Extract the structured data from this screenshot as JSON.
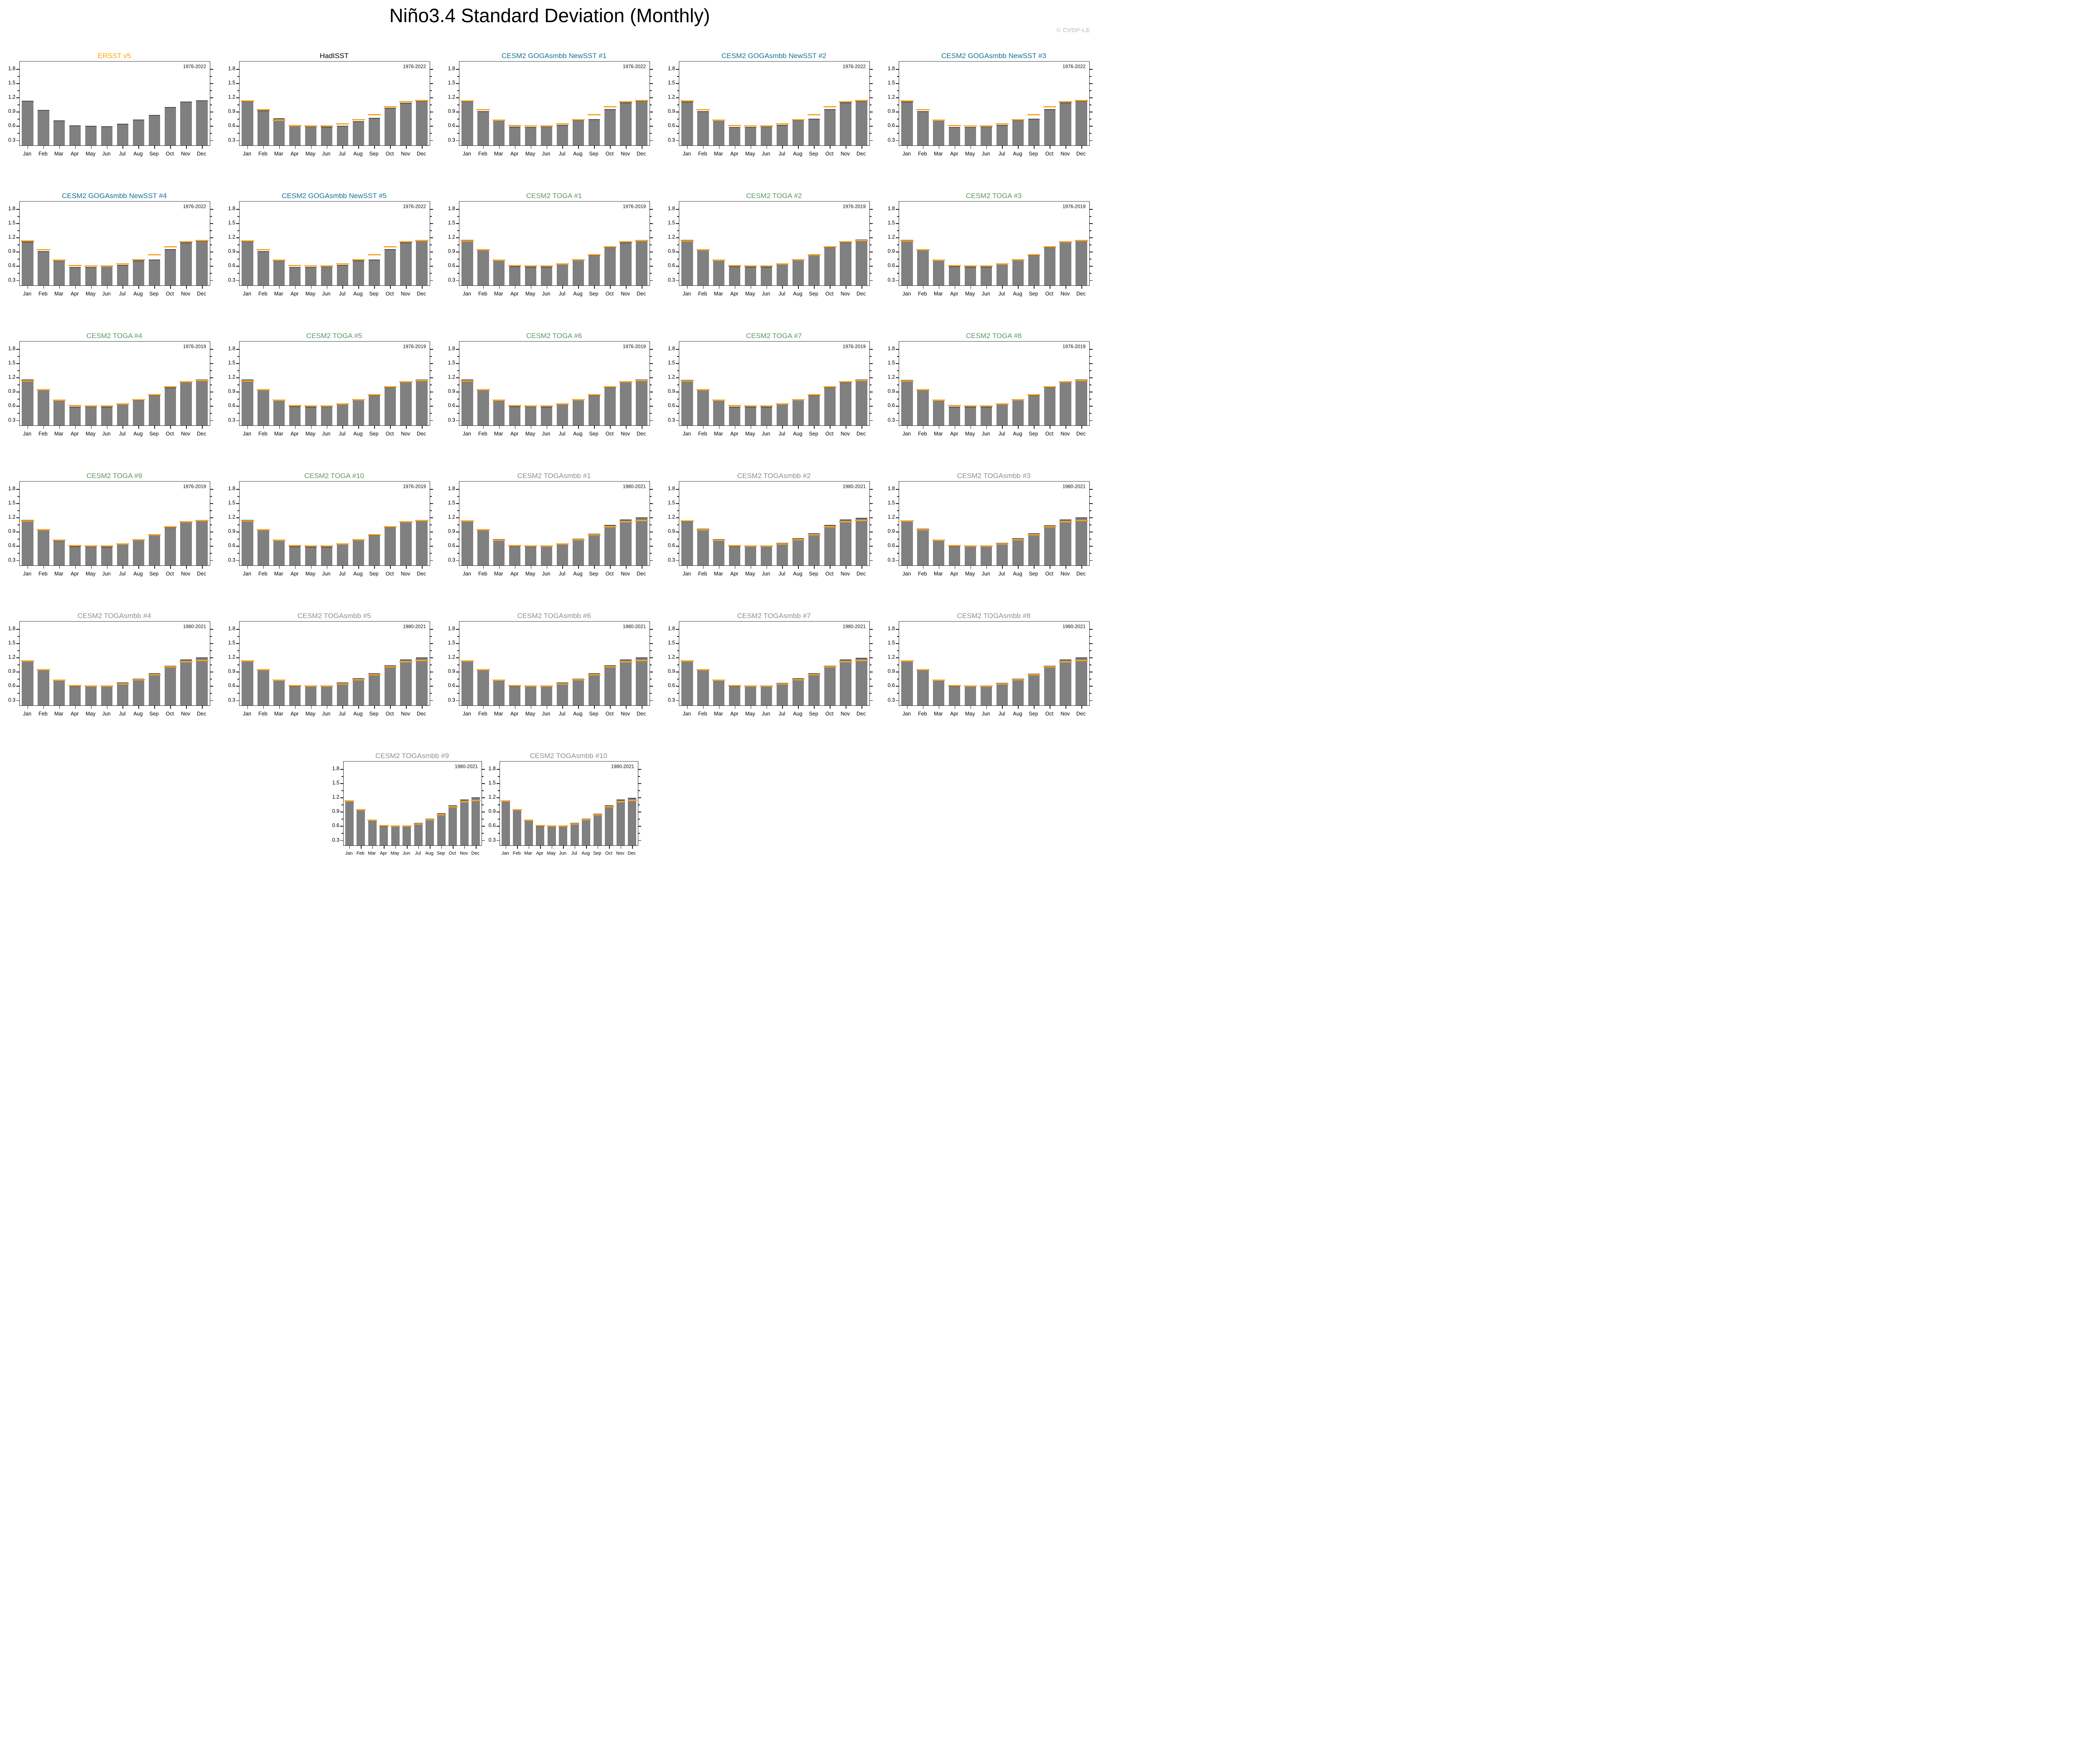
{
  "header": {
    "title": "Niño3.4 Standard Deviation (Monthly)",
    "watermark": "© CVDP-LE"
  },
  "colors": {
    "bar": "#808080",
    "bar_edge": "#4F4F4F",
    "reference_mark": "#FFA41E",
    "obs_title": "#FFA200",
    "hadisst_title": "#000000",
    "goga_title": "#15718F",
    "toga_title": "#5E9663",
    "togasmbb_title": "#8F8F8F",
    "watermark": "#CFCFCF",
    "axis": "#1A1A1A"
  },
  "chart_data": {
    "type": "bar",
    "title": "Niño3.4 Standard Deviation (Monthly)",
    "categories": [
      "Jan",
      "Feb",
      "Mar",
      "Apr",
      "May",
      "Jun",
      "Jul",
      "Aug",
      "Sep",
      "Oct",
      "Nov",
      "Dec"
    ],
    "xlabel": "",
    "ylabel": "",
    "ylim": [
      0.19,
      1.95
    ],
    "yticks": [
      0.3,
      0.6,
      0.9,
      1.2,
      1.5,
      1.8
    ],
    "ytick_labels": [
      "0.3",
      "0.6",
      "0.9",
      "1.2",
      "1.5",
      "1.8"
    ],
    "yticks_minor": [
      0.45,
      0.75,
      1.05,
      1.35,
      1.65
    ],
    "grid": false,
    "legend_position": "none",
    "reference_name": "ERSST v5",
    "reference_values": [
      1.13,
      0.94,
      0.72,
      0.61,
      0.6,
      0.595,
      0.645,
      0.735,
      0.835,
      1.0,
      1.11,
      1.14
    ],
    "series": [
      {
        "name": "ERSST v5",
        "period": "1976-2022",
        "title_color": "obs_title",
        "show_reference": false,
        "values": [
          1.13,
          0.94,
          0.72,
          0.61,
          0.6,
          0.595,
          0.645,
          0.735,
          0.835,
          1.0,
          1.11,
          1.14
        ]
      },
      {
        "name": "HadISST",
        "period": "1976-2022",
        "title_color": "hadisst_title",
        "show_reference": true,
        "values": [
          1.12,
          0.93,
          0.76,
          0.61,
          0.595,
          0.59,
          0.6,
          0.7,
          0.775,
          0.98,
          1.09,
          1.13
        ]
      },
      {
        "name": "CESM2 GOGAsmbb NewSST #1",
        "period": "1976-2022",
        "title_color": "goga_title",
        "show_reference": true,
        "values": [
          1.12,
          0.91,
          0.73,
          0.585,
          0.58,
          0.595,
          0.62,
          0.73,
          0.745,
          0.96,
          1.1,
          1.135
        ]
      },
      {
        "name": "CESM2 GOGAsmbb NewSST #2",
        "period": "1976-2022",
        "title_color": "goga_title",
        "show_reference": true,
        "values": [
          1.11,
          0.915,
          0.725,
          0.575,
          0.575,
          0.595,
          0.62,
          0.725,
          0.75,
          0.955,
          1.095,
          1.13
        ]
      },
      {
        "name": "CESM2 GOGAsmbb NewSST #3",
        "period": "1976-2022",
        "title_color": "goga_title",
        "show_reference": true,
        "values": [
          1.115,
          0.915,
          0.725,
          0.58,
          0.575,
          0.595,
          0.62,
          0.73,
          0.75,
          0.955,
          1.095,
          1.13
        ]
      },
      {
        "name": "CESM2 GOGAsmbb NewSST #4",
        "period": "1976-2022",
        "title_color": "goga_title",
        "show_reference": true,
        "values": [
          1.115,
          0.915,
          0.72,
          0.575,
          0.575,
          0.6,
          0.62,
          0.72,
          0.74,
          0.955,
          1.1,
          1.135
        ]
      },
      {
        "name": "CESM2 GOGAsmbb NewSST #5",
        "period": "1976-2022",
        "title_color": "goga_title",
        "show_reference": true,
        "values": [
          1.12,
          0.915,
          0.72,
          0.58,
          0.575,
          0.595,
          0.62,
          0.72,
          0.74,
          0.96,
          1.1,
          1.14
        ]
      },
      {
        "name": "CESM2 TOGA #1",
        "period": "1976-2019",
        "title_color": "toga_title",
        "show_reference": true,
        "values": [
          1.15,
          0.955,
          0.735,
          0.595,
          0.59,
          0.59,
          0.65,
          0.74,
          0.835,
          1.0,
          1.1,
          1.15
        ]
      },
      {
        "name": "CESM2 TOGA #2",
        "period": "1976-2019",
        "title_color": "toga_title",
        "show_reference": true,
        "values": [
          1.15,
          0.955,
          0.735,
          0.595,
          0.59,
          0.59,
          0.65,
          0.745,
          0.84,
          1.0,
          1.105,
          1.155
        ]
      },
      {
        "name": "CESM2 TOGA #3",
        "period": "1976-2019",
        "title_color": "toga_title",
        "show_reference": true,
        "values": [
          1.15,
          0.95,
          0.73,
          0.595,
          0.59,
          0.585,
          0.65,
          0.745,
          0.835,
          1.0,
          1.11,
          1.15
        ]
      },
      {
        "name": "CESM2 TOGA #4",
        "period": "1976-2019",
        "title_color": "toga_title",
        "show_reference": true,
        "values": [
          1.155,
          0.95,
          0.725,
          0.59,
          0.595,
          0.59,
          0.645,
          0.73,
          0.835,
          0.995,
          1.11,
          1.16
        ]
      },
      {
        "name": "CESM2 TOGA #5",
        "period": "1976-2019",
        "title_color": "toga_title",
        "show_reference": true,
        "values": [
          1.155,
          0.95,
          0.725,
          0.595,
          0.59,
          0.595,
          0.65,
          0.74,
          0.835,
          1.0,
          1.11,
          1.16
        ]
      },
      {
        "name": "CESM2 TOGA #6",
        "period": "1976-2019",
        "title_color": "toga_title",
        "show_reference": true,
        "values": [
          1.155,
          0.955,
          0.725,
          0.595,
          0.595,
          0.59,
          0.65,
          0.74,
          0.835,
          1.0,
          1.11,
          1.155
        ]
      },
      {
        "name": "CESM2 TOGA #7",
        "period": "1976-2019",
        "title_color": "toga_title",
        "show_reference": true,
        "values": [
          1.15,
          0.95,
          0.725,
          0.59,
          0.59,
          0.585,
          0.645,
          0.735,
          0.835,
          1.0,
          1.105,
          1.155
        ]
      },
      {
        "name": "CESM2 TOGA #8",
        "period": "1976-2019",
        "title_color": "toga_title",
        "show_reference": true,
        "values": [
          1.15,
          0.95,
          0.725,
          0.59,
          0.59,
          0.59,
          0.65,
          0.74,
          0.83,
          1.0,
          1.11,
          1.155
        ]
      },
      {
        "name": "CESM2 TOGA #9",
        "period": "1976-2019",
        "title_color": "toga_title",
        "show_reference": true,
        "values": [
          1.15,
          0.945,
          0.72,
          0.595,
          0.595,
          0.59,
          0.645,
          0.74,
          0.84,
          1.0,
          1.11,
          1.15
        ]
      },
      {
        "name": "CESM2 TOGA #10",
        "period": "1976-2019",
        "title_color": "toga_title",
        "show_reference": true,
        "values": [
          1.15,
          0.95,
          0.73,
          0.595,
          0.59,
          0.59,
          0.65,
          0.74,
          0.835,
          1.0,
          1.11,
          1.15
        ]
      },
      {
        "name": "CESM2 TOGAsmbb #1",
        "period": "1980-2021",
        "title_color": "togasmbb_title",
        "show_reference": true,
        "values": [
          1.13,
          0.96,
          0.745,
          0.6,
          0.595,
          0.605,
          0.66,
          0.75,
          0.86,
          1.04,
          1.16,
          1.2
        ]
      },
      {
        "name": "CESM2 TOGAsmbb #2",
        "period": "1980-2021",
        "title_color": "togasmbb_title",
        "show_reference": true,
        "values": [
          1.125,
          0.965,
          0.745,
          0.605,
          0.6,
          0.61,
          0.665,
          0.765,
          0.865,
          1.04,
          1.155,
          1.195
        ]
      },
      {
        "name": "CESM2 TOGAsmbb #3",
        "period": "1980-2021",
        "title_color": "togasmbb_title",
        "show_reference": true,
        "values": [
          1.13,
          0.965,
          0.74,
          0.605,
          0.6,
          0.61,
          0.665,
          0.76,
          0.865,
          1.035,
          1.155,
          1.2
        ]
      },
      {
        "name": "CESM2 TOGAsmbb #4",
        "period": "1980-2021",
        "title_color": "togasmbb_title",
        "show_reference": true,
        "values": [
          1.135,
          0.96,
          0.735,
          0.605,
          0.6,
          0.61,
          0.67,
          0.755,
          0.865,
          1.03,
          1.16,
          1.2
        ]
      },
      {
        "name": "CESM2 TOGAsmbb #5",
        "period": "1980-2021",
        "title_color": "togasmbb_title",
        "show_reference": true,
        "values": [
          1.135,
          0.96,
          0.735,
          0.605,
          0.6,
          0.61,
          0.67,
          0.76,
          0.865,
          1.035,
          1.16,
          1.2
        ]
      },
      {
        "name": "CESM2 TOGAsmbb #6",
        "period": "1980-2021",
        "title_color": "togasmbb_title",
        "show_reference": true,
        "values": [
          1.135,
          0.96,
          0.735,
          0.605,
          0.6,
          0.61,
          0.67,
          0.755,
          0.865,
          1.035,
          1.16,
          1.2
        ]
      },
      {
        "name": "CESM2 TOGAsmbb #7",
        "period": "1980-2021",
        "title_color": "togasmbb_title",
        "show_reference": true,
        "values": [
          1.135,
          0.96,
          0.735,
          0.605,
          0.6,
          0.61,
          0.665,
          0.76,
          0.865,
          1.03,
          1.155,
          1.195
        ]
      },
      {
        "name": "CESM2 TOGAsmbb #8",
        "period": "1980-2021",
        "title_color": "togasmbb_title",
        "show_reference": true,
        "values": [
          1.135,
          0.96,
          0.735,
          0.605,
          0.6,
          0.61,
          0.665,
          0.755,
          0.86,
          1.03,
          1.155,
          1.2
        ]
      },
      {
        "name": "CESM2 TOGAsmbb #9",
        "period": "1980-2021",
        "title_color": "togasmbb_title",
        "show_reference": true,
        "values": [
          1.13,
          0.96,
          0.735,
          0.605,
          0.6,
          0.61,
          0.665,
          0.755,
          0.865,
          1.035,
          1.155,
          1.2
        ]
      },
      {
        "name": "CESM2 TOGAsmbb #10",
        "period": "1980-2021",
        "title_color": "togasmbb_title",
        "show_reference": true,
        "values": [
          1.135,
          0.96,
          0.73,
          0.605,
          0.6,
          0.61,
          0.665,
          0.755,
          0.86,
          1.035,
          1.155,
          1.195
        ]
      }
    ]
  }
}
